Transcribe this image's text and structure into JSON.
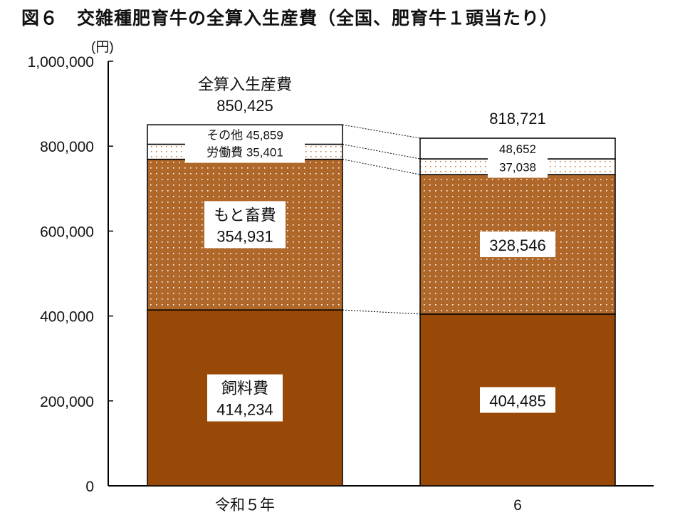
{
  "chart_data": {
    "type": "bar",
    "stacked": true,
    "title": "図６　交雑種肥育牛の全算入生産費（全国、肥育牛１頭当たり）",
    "ylabel": "(円)",
    "ylim": [
      0,
      1000000
    ],
    "yticks": [
      "0",
      "200,000",
      "400,000",
      "600,000",
      "800,000",
      "1,000,000"
    ],
    "ytick_values": [
      0,
      200000,
      400000,
      600000,
      800000,
      1000000
    ],
    "categories": [
      "令和５年",
      "6"
    ],
    "series": [
      {
        "name": "飼料費",
        "values": [
          414234,
          404485
        ],
        "labels": [
          "414,234",
          "404,485"
        ],
        "color": "#984807",
        "pattern": "solid"
      },
      {
        "name": "もと畜費",
        "values": [
          354931,
          328546
        ],
        "labels": [
          "354,931",
          "328,546"
        ],
        "color": "#b0682a",
        "pattern": "white-dots"
      },
      {
        "name": "労働費",
        "values": [
          35401,
          37038
        ],
        "labels": [
          "35,401",
          "37,038"
        ],
        "color": "#ffffff",
        "pattern": "orange-dots"
      },
      {
        "name": "その他",
        "values": [
          45859,
          48652
        ],
        "labels": [
          "45,859",
          "48,652"
        ],
        "color": "#ffffff",
        "pattern": "solid"
      }
    ],
    "totals": {
      "name": "全算入生産費",
      "values": [
        850425,
        818721
      ],
      "labels": [
        "850,425",
        "818,721"
      ]
    }
  }
}
